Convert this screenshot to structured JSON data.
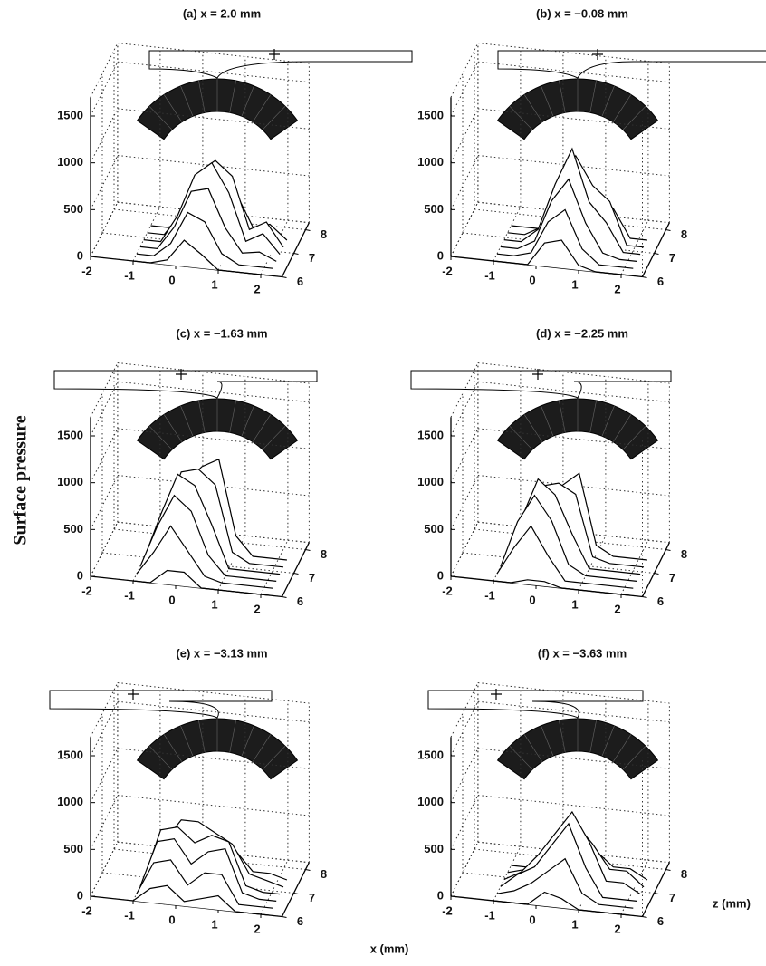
{
  "figure": {
    "y_label": "Surface pressure",
    "x_label": "x (mm)",
    "z_label": "z (mm)"
  },
  "chart_data": [
    {
      "type": "waterfall3d",
      "title": "(a)  x = 2.0 mm",
      "x": [
        -1,
        -0.6,
        -0.2,
        0.2,
        0.6,
        1,
        1.4,
        1.8,
        2.2
      ],
      "xlim": [
        -2,
        2.5
      ],
      "ylim": [
        0,
        1700
      ],
      "zlim": [
        6,
        8.3
      ],
      "xticks": [
        -2,
        -1,
        0,
        1,
        2
      ],
      "yticks": [
        0,
        500,
        1000,
        1500
      ],
      "zticks": [
        6,
        7,
        8
      ],
      "series": [
        {
          "z": 6,
          "values": [
            0,
            0,
            50,
            280,
            150,
            0,
            0,
            0,
            0
          ]
        },
        {
          "z": 6.3,
          "values": [
            0,
            0,
            150,
            500,
            420,
            100,
            0,
            0,
            0
          ]
        },
        {
          "z": 6.6,
          "values": [
            0,
            0,
            250,
            650,
            700,
            300,
            50,
            80,
            0
          ]
        },
        {
          "z": 6.9,
          "values": [
            0,
            0,
            300,
            750,
            900,
            600,
            100,
            200,
            0
          ]
        },
        {
          "z": 7.2,
          "values": [
            0,
            0,
            250,
            700,
            850,
            700,
            150,
            250,
            0
          ]
        },
        {
          "z": 7.5,
          "values": [
            0,
            0,
            100,
            400,
            500,
            450,
            100,
            150,
            0
          ]
        }
      ]
    },
    {
      "type": "waterfall3d",
      "title": "(b)  x = −0.08 mm",
      "x": [
        -1,
        -0.6,
        -0.2,
        0.2,
        0.6,
        1,
        1.4,
        1.8,
        2.2
      ],
      "xlim": [
        -2,
        2.5
      ],
      "ylim": [
        0,
        1700
      ],
      "zlim": [
        6,
        8.3
      ],
      "xticks": [
        -2,
        -1,
        0,
        1,
        2
      ],
      "yticks": [
        0,
        500,
        1000,
        1500
      ],
      "zticks": [
        6,
        7,
        8
      ],
      "series": [
        {
          "z": 6,
          "values": [
            0,
            0,
            0,
            250,
            300,
            50,
            0,
            0,
            0
          ]
        },
        {
          "z": 6.3,
          "values": [
            0,
            0,
            50,
            400,
            550,
            150,
            0,
            0,
            0
          ]
        },
        {
          "z": 6.6,
          "values": [
            0,
            0,
            100,
            550,
            800,
            350,
            50,
            0,
            0
          ]
        },
        {
          "z": 6.9,
          "values": [
            0,
            0,
            150,
            650,
            1050,
            500,
            300,
            0,
            0
          ]
        },
        {
          "z": 7.2,
          "values": [
            0,
            0,
            100,
            550,
            900,
            600,
            450,
            0,
            0
          ]
        },
        {
          "z": 7.5,
          "values": [
            0,
            0,
            0,
            300,
            600,
            450,
            300,
            0,
            0
          ]
        }
      ]
    },
    {
      "type": "waterfall3d",
      "title": "(c)  x = −1.63 mm",
      "x": [
        -1,
        -0.6,
        -0.2,
        0.2,
        0.6,
        1,
        1.4,
        1.8,
        2.2
      ],
      "xlim": [
        -2,
        2.5
      ],
      "ylim": [
        0,
        1700
      ],
      "zlim": [
        6,
        8.3
      ],
      "xticks": [
        -2,
        -1,
        0,
        1,
        2
      ],
      "yticks": [
        0,
        500,
        1000,
        1500
      ],
      "zticks": [
        6,
        7,
        8
      ],
      "series": [
        {
          "z": 6,
          "values": [
            0,
            0,
            150,
            150,
            0,
            0,
            0,
            0,
            0
          ]
        },
        {
          "z": 6.3,
          "values": [
            0,
            250,
            550,
            300,
            50,
            0,
            0,
            0,
            0
          ]
        },
        {
          "z": 6.6,
          "values": [
            0,
            450,
            800,
            650,
            200,
            0,
            0,
            0,
            0
          ]
        },
        {
          "z": 6.9,
          "values": [
            0,
            500,
            950,
            850,
            450,
            0,
            0,
            0,
            0
          ]
        },
        {
          "z": 7.2,
          "values": [
            0,
            400,
            900,
            950,
            800,
            100,
            0,
            0,
            0
          ]
        },
        {
          "z": 7.5,
          "values": [
            0,
            200,
            700,
            900,
            1000,
            200,
            0,
            0,
            0
          ]
        }
      ]
    },
    {
      "type": "waterfall3d",
      "title": "(d)  x = −2.25 mm",
      "x": [
        -1,
        -0.6,
        -0.2,
        0.2,
        0.6,
        1,
        1.4,
        1.8,
        2.2
      ],
      "xlim": [
        -2,
        2.5
      ],
      "ylim": [
        0,
        1700
      ],
      "zlim": [
        6,
        8.3
      ],
      "xticks": [
        -2,
        -1,
        0,
        1,
        2
      ],
      "yticks": [
        0,
        500,
        1000,
        1500
      ],
      "zticks": [
        6,
        7,
        8
      ],
      "series": [
        {
          "z": 6,
          "values": [
            0,
            0,
            50,
            50,
            0,
            0,
            0,
            0,
            0
          ]
        },
        {
          "z": 6.3,
          "values": [
            0,
            300,
            550,
            250,
            0,
            0,
            0,
            0,
            0
          ]
        },
        {
          "z": 6.6,
          "values": [
            0,
            500,
            800,
            550,
            100,
            0,
            0,
            0,
            0
          ]
        },
        {
          "z": 6.9,
          "values": [
            0,
            450,
            900,
            750,
            350,
            0,
            0,
            0,
            0
          ]
        },
        {
          "z": 7.2,
          "values": [
            0,
            300,
            750,
            800,
            700,
            50,
            0,
            0,
            0
          ]
        },
        {
          "z": 7.5,
          "values": [
            0,
            100,
            500,
            700,
            850,
            100,
            0,
            0,
            0
          ]
        }
      ]
    },
    {
      "type": "waterfall3d",
      "title": "(e)  x = −3.13 mm",
      "x": [
        -1,
        -0.6,
        -0.2,
        0.2,
        0.6,
        1,
        1.4,
        1.8,
        2.2
      ],
      "xlim": [
        -2,
        2.5
      ],
      "ylim": [
        0,
        1700
      ],
      "zlim": [
        6,
        8.3
      ],
      "xticks": [
        -2,
        -1,
        0,
        1,
        2
      ],
      "yticks": [
        0,
        500,
        1000,
        1500
      ],
      "zticks": [
        6,
        7,
        8
      ],
      "series": [
        {
          "z": 6,
          "values": [
            0,
            150,
            200,
            50,
            100,
            150,
            0,
            0,
            0
          ]
        },
        {
          "z": 6.3,
          "values": [
            0,
            350,
            400,
            150,
            300,
            300,
            0,
            0,
            0
          ]
        },
        {
          "z": 6.6,
          "values": [
            0,
            500,
            550,
            300,
            450,
            500,
            50,
            0,
            0
          ]
        },
        {
          "z": 6.9,
          "values": [
            0,
            550,
            600,
            450,
            550,
            500,
            50,
            0,
            0
          ]
        },
        {
          "z": 7.2,
          "values": [
            0,
            350,
            600,
            600,
            500,
            400,
            100,
            50,
            0
          ]
        },
        {
          "z": 7.5,
          "values": [
            0,
            150,
            400,
            500,
            350,
            250,
            50,
            50,
            0
          ]
        }
      ]
    },
    {
      "type": "waterfall3d",
      "title": "(f)  x = −3.63 mm",
      "x": [
        -1,
        -0.6,
        -0.2,
        0.2,
        0.6,
        1,
        1.4,
        1.8,
        2.2
      ],
      "xlim": [
        -2,
        2.5
      ],
      "ylim": [
        0,
        1700
      ],
      "zlim": [
        6,
        8.3
      ],
      "xticks": [
        -2,
        -1,
        0,
        1,
        2
      ],
      "yticks": [
        0,
        500,
        1000,
        1500
      ],
      "zticks": [
        6,
        7,
        8
      ],
      "series": [
        {
          "z": 6,
          "values": [
            0,
            0,
            0,
            150,
            100,
            0,
            0,
            0,
            0
          ]
        },
        {
          "z": 6.3,
          "values": [
            0,
            50,
            150,
            300,
            450,
            100,
            0,
            0,
            0
          ]
        },
        {
          "z": 6.6,
          "values": [
            0,
            150,
            250,
            500,
            750,
            300,
            0,
            0,
            0
          ]
        },
        {
          "z": 6.9,
          "values": [
            0,
            100,
            300,
            550,
            800,
            500,
            100,
            100,
            0
          ]
        },
        {
          "z": 7.2,
          "values": [
            0,
            50,
            200,
            400,
            600,
            400,
            150,
            150,
            0
          ]
        },
        {
          "z": 7.5,
          "values": [
            0,
            0,
            100,
            200,
            350,
            250,
            100,
            100,
            0
          ]
        }
      ]
    }
  ]
}
